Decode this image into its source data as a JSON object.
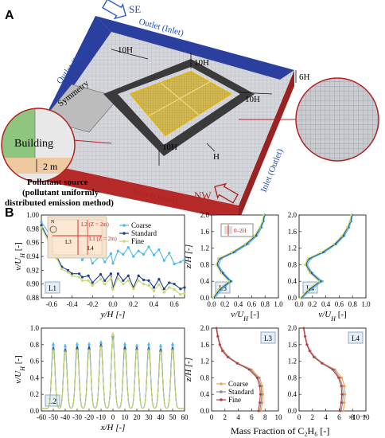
{
  "panel_a": {
    "label": "A",
    "compass_se": "SE",
    "compass_nw": "NW",
    "outlet_inlet_back": "Outlet (Inlet)",
    "outlet_inlet_top": "Outlet (Inlet)",
    "inlet_outlet_front": "Inlet (Outlet)",
    "inlet_outlet_right": "Inlet (Outlet)",
    "dim_10h": "10H",
    "dim_6h": "6H",
    "dim_h": "H",
    "symmetry": "Symmetry",
    "building": "Building",
    "dim_2m": "2 m",
    "pollutant_lines": [
      "Pollutant source",
      "(pollutant uniformly",
      "distributed emission method)"
    ]
  },
  "panel_b": {
    "label": "B",
    "legend_grid": [
      "Coarse",
      "Standard",
      "Fine"
    ],
    "colors": {
      "coarse": "#4fb8e8",
      "standard": "#1f3f8f",
      "fine": "#c9d66a",
      "cfine": "#b33a4a",
      "ccoarse": "#f0a24a",
      "cstandard": "#8a8a8a"
    },
    "inset_labels": {
      "l2": "L2 (Z = 2m)",
      "l1": "L1 (Z = 2m)",
      "l3": "L3",
      "l4": "L4",
      "n": "N"
    },
    "mass_fraction_xlabel": "Mass Fraction of C₂H₆ [-]",
    "sci_exponent": "×10⁻⁴"
  },
  "chart_data": [
    {
      "type": "line",
      "panel": "L1",
      "xlabel": "y/H [-]",
      "ylabel": "v/U_H [-]",
      "xlim": [
        -0.7,
        0.7
      ],
      "ylim": [
        0.88,
        1.0
      ],
      "xticks": [
        "-0.6",
        "-0.4",
        "-0.2",
        "0.0",
        "0.2",
        "0.4",
        "0.6"
      ],
      "yticks": [
        "0.88",
        "0.90",
        "0.92",
        "0.94",
        "0.96",
        "0.98",
        "1.00"
      ],
      "series": [
        {
          "name": "Coarse",
          "x": [
            -0.7,
            -0.62,
            -0.55,
            -0.5,
            -0.44,
            -0.4,
            -0.33,
            -0.3,
            -0.24,
            -0.2,
            -0.12,
            -0.08,
            -0.02,
            0.0,
            0.05,
            0.1,
            0.15,
            0.2,
            0.25,
            0.3,
            0.35,
            0.4,
            0.45,
            0.5,
            0.55,
            0.6,
            0.66,
            0.7
          ],
          "y": [
            0.99,
            0.972,
            0.958,
            0.953,
            0.96,
            0.945,
            0.95,
            0.935,
            0.946,
            0.93,
            0.942,
            0.932,
            0.944,
            0.93,
            0.948,
            0.943,
            0.953,
            0.94,
            0.948,
            0.943,
            0.954,
            0.942,
            0.95,
            0.934,
            0.945,
            0.929,
            0.932,
            0.935
          ]
        },
        {
          "name": "Standard",
          "x": [
            -0.7,
            -0.62,
            -0.55,
            -0.5,
            -0.44,
            -0.4,
            -0.33,
            -0.3,
            -0.24,
            -0.2,
            -0.12,
            -0.08,
            -0.02,
            0.0,
            0.05,
            0.1,
            0.15,
            0.2,
            0.25,
            0.3,
            0.35,
            0.4,
            0.45,
            0.5,
            0.55,
            0.6,
            0.66,
            0.7
          ],
          "y": [
            0.985,
            0.962,
            0.94,
            0.925,
            0.92,
            0.915,
            0.915,
            0.91,
            0.912,
            0.902,
            0.914,
            0.905,
            0.915,
            0.895,
            0.915,
            0.905,
            0.912,
            0.895,
            0.912,
            0.906,
            0.905,
            0.895,
            0.907,
            0.893,
            0.902,
            0.9,
            0.893,
            0.895
          ]
        },
        {
          "name": "Fine",
          "x": [
            -0.7,
            -0.62,
            -0.55,
            -0.5,
            -0.44,
            -0.4,
            -0.33,
            -0.3,
            -0.24,
            -0.2,
            -0.12,
            -0.08,
            -0.02,
            0.0,
            0.05,
            0.1,
            0.15,
            0.2,
            0.25,
            0.3,
            0.35,
            0.4,
            0.45,
            0.5,
            0.55,
            0.6,
            0.66,
            0.7
          ],
          "y": [
            0.982,
            0.958,
            0.937,
            0.922,
            0.917,
            0.912,
            0.91,
            0.905,
            0.905,
            0.898,
            0.907,
            0.9,
            0.908,
            0.892,
            0.908,
            0.9,
            0.905,
            0.893,
            0.905,
            0.9,
            0.898,
            0.89,
            0.899,
            0.888,
            0.895,
            0.892,
            0.885,
            0.887
          ]
        }
      ]
    },
    {
      "type": "line",
      "panel": "L3",
      "xlabel": "v/U_H [-]",
      "ylabel": "z/H [-]",
      "xlim": [
        0.0,
        1.0
      ],
      "ylim": [
        0.0,
        2.0
      ],
      "xticks": [
        "0.0",
        "0.2",
        "0.4",
        "0.6",
        "0.8",
        "1.0"
      ],
      "yticks": [
        "0.0",
        "0.4",
        "0.8",
        "1.2",
        "1.6",
        "2.0"
      ],
      "series": [
        {
          "name": "Coarse",
          "x": [
            0.05,
            0.15,
            0.3,
            0.18,
            0.1,
            0.15,
            0.35,
            0.55,
            0.68,
            0.75,
            0.78,
            0.8
          ],
          "y": [
            0.0,
            0.2,
            0.4,
            0.6,
            0.8,
            0.95,
            1.1,
            1.3,
            1.5,
            1.7,
            1.85,
            2.0
          ]
        },
        {
          "name": "Standard",
          "x": [
            0.03,
            0.12,
            0.28,
            0.16,
            0.08,
            0.12,
            0.32,
            0.52,
            0.66,
            0.73,
            0.77,
            0.79
          ],
          "y": [
            0.0,
            0.2,
            0.4,
            0.6,
            0.8,
            0.95,
            1.1,
            1.3,
            1.5,
            1.7,
            1.85,
            2.0
          ]
        },
        {
          "name": "Fine",
          "x": [
            0.02,
            0.1,
            0.26,
            0.14,
            0.07,
            0.1,
            0.3,
            0.5,
            0.64,
            0.72,
            0.76,
            0.78
          ],
          "y": [
            0.0,
            0.2,
            0.4,
            0.6,
            0.8,
            0.95,
            1.1,
            1.3,
            1.5,
            1.7,
            1.85,
            2.0
          ]
        }
      ]
    },
    {
      "type": "line",
      "panel": "L4",
      "xlabel": "v/U_H [-]",
      "ylabel": "",
      "xlim": [
        0.0,
        1.0
      ],
      "ylim": [
        0.0,
        2.0
      ],
      "xticks": [
        "0.0",
        "0.2",
        "0.4",
        "0.6",
        "0.8",
        "1.0"
      ],
      "yticks": [
        "0.0",
        "0.4",
        "0.8",
        "1.2",
        "1.6",
        "2.0"
      ],
      "series": [
        {
          "name": "Coarse",
          "x": [
            0.05,
            0.18,
            0.35,
            0.2,
            0.12,
            0.18,
            0.38,
            0.56,
            0.68,
            0.75,
            0.78,
            0.8
          ],
          "y": [
            0.0,
            0.2,
            0.4,
            0.6,
            0.8,
            0.95,
            1.1,
            1.3,
            1.5,
            1.7,
            1.85,
            2.0
          ]
        },
        {
          "name": "Standard",
          "x": [
            0.03,
            0.15,
            0.32,
            0.18,
            0.1,
            0.15,
            0.35,
            0.54,
            0.66,
            0.73,
            0.77,
            0.79
          ],
          "y": [
            0.0,
            0.2,
            0.4,
            0.6,
            0.8,
            0.95,
            1.1,
            1.3,
            1.5,
            1.7,
            1.85,
            2.0
          ]
        },
        {
          "name": "Fine",
          "x": [
            0.02,
            0.13,
            0.3,
            0.16,
            0.09,
            0.13,
            0.33,
            0.52,
            0.64,
            0.72,
            0.76,
            0.78
          ],
          "y": [
            0.0,
            0.2,
            0.4,
            0.6,
            0.8,
            0.95,
            1.1,
            1.3,
            1.5,
            1.7,
            1.85,
            2.0
          ]
        }
      ]
    },
    {
      "type": "line",
      "panel": "L2",
      "xlabel": "x/H [-]",
      "ylabel": "v/U_H [-]",
      "xlim": [
        -60,
        60
      ],
      "ylim": [
        0.0,
        1.0
      ],
      "xticks": [
        "-60",
        "-50",
        "-40",
        "-30",
        "-20",
        "-10",
        "0",
        "10",
        "20",
        "30",
        "40",
        "50",
        "60"
      ],
      "yticks": [
        "0.0",
        "0.2",
        "0.4",
        "0.6",
        "0.8",
        "1.0"
      ],
      "peaks_x": [
        -50,
        -40,
        -30,
        -20,
        -10,
        0,
        10,
        20,
        30,
        40,
        50
      ],
      "series": [
        {
          "name": "Coarse",
          "peaks": [
            0.8,
            0.78,
            0.8,
            0.8,
            0.82,
            0.88,
            0.8,
            0.78,
            0.8,
            0.78,
            0.8
          ]
        },
        {
          "name": "Standard",
          "peaks": [
            0.74,
            0.72,
            0.75,
            0.75,
            0.78,
            0.9,
            0.75,
            0.74,
            0.74,
            0.72,
            0.74
          ]
        },
        {
          "name": "Fine",
          "peaks": [
            0.72,
            0.7,
            0.72,
            0.72,
            0.76,
            0.92,
            0.72,
            0.72,
            0.72,
            0.7,
            0.72
          ]
        }
      ]
    },
    {
      "type": "line",
      "panel": "L3",
      "xlabel": "",
      "ylabel": "z/H [-]",
      "xlim": [
        0,
        10
      ],
      "ylim": [
        0.0,
        2.0
      ],
      "xticks": [
        "0",
        "2",
        "4",
        "6",
        "8",
        "10"
      ],
      "yticks": [
        "0.0",
        "0.4",
        "0.8",
        "1.2",
        "1.6",
        "2.0"
      ],
      "series": [
        {
          "name": "Coarse",
          "x": [
            7.4,
            7.6,
            7.7,
            7.6,
            7.2,
            6.0,
            4.0,
            2.6,
            1.8,
            1.3,
            1.0,
            0.8
          ],
          "y": [
            0.0,
            0.2,
            0.4,
            0.6,
            0.8,
            1.0,
            1.15,
            1.3,
            1.45,
            1.6,
            1.8,
            2.0
          ]
        },
        {
          "name": "Standard",
          "x": [
            7.2,
            7.4,
            7.5,
            7.4,
            7.0,
            5.8,
            3.9,
            2.5,
            1.7,
            1.25,
            0.95,
            0.75
          ],
          "y": [
            0.0,
            0.2,
            0.4,
            0.6,
            0.8,
            1.0,
            1.15,
            1.3,
            1.45,
            1.6,
            1.8,
            2.0
          ]
        },
        {
          "name": "Fine",
          "x": [
            7.0,
            7.2,
            7.3,
            7.2,
            6.8,
            5.6,
            3.8,
            2.4,
            1.6,
            1.2,
            0.9,
            0.7
          ],
          "y": [
            0.0,
            0.2,
            0.4,
            0.6,
            0.8,
            1.0,
            1.15,
            1.3,
            1.45,
            1.6,
            1.8,
            2.0
          ]
        }
      ]
    },
    {
      "type": "line",
      "panel": "L4",
      "xlabel": "",
      "ylabel": "",
      "xlim": [
        0,
        10
      ],
      "ylim": [
        0.0,
        2.0
      ],
      "xticks": [
        "0",
        "2",
        "4",
        "6",
        "8",
        "10"
      ],
      "yticks": [
        "0.0",
        "0.4",
        "0.8",
        "1.2",
        "1.6",
        "2.0"
      ],
      "series": [
        {
          "name": "Coarse",
          "x": [
            6.6,
            6.8,
            6.9,
            6.8,
            6.4,
            5.4,
            3.6,
            2.4,
            1.7,
            1.25,
            0.95,
            0.75
          ],
          "y": [
            0.0,
            0.2,
            0.4,
            0.6,
            0.8,
            1.0,
            1.15,
            1.3,
            1.45,
            1.6,
            1.8,
            2.0
          ]
        },
        {
          "name": "Standard",
          "x": [
            6.3,
            6.5,
            6.6,
            6.5,
            6.1,
            5.2,
            3.5,
            2.3,
            1.6,
            1.2,
            0.9,
            0.7
          ],
          "y": [
            0.0,
            0.2,
            0.4,
            0.6,
            0.8,
            1.0,
            1.15,
            1.3,
            1.45,
            1.6,
            1.8,
            2.0
          ]
        },
        {
          "name": "Fine",
          "x": [
            6.1,
            6.3,
            6.4,
            6.3,
            5.9,
            5.0,
            3.4,
            2.2,
            1.55,
            1.15,
            0.88,
            0.68
          ],
          "y": [
            0.0,
            0.2,
            0.4,
            0.6,
            0.8,
            1.0,
            1.15,
            1.3,
            1.45,
            1.6,
            1.8,
            2.0
          ]
        }
      ]
    }
  ]
}
